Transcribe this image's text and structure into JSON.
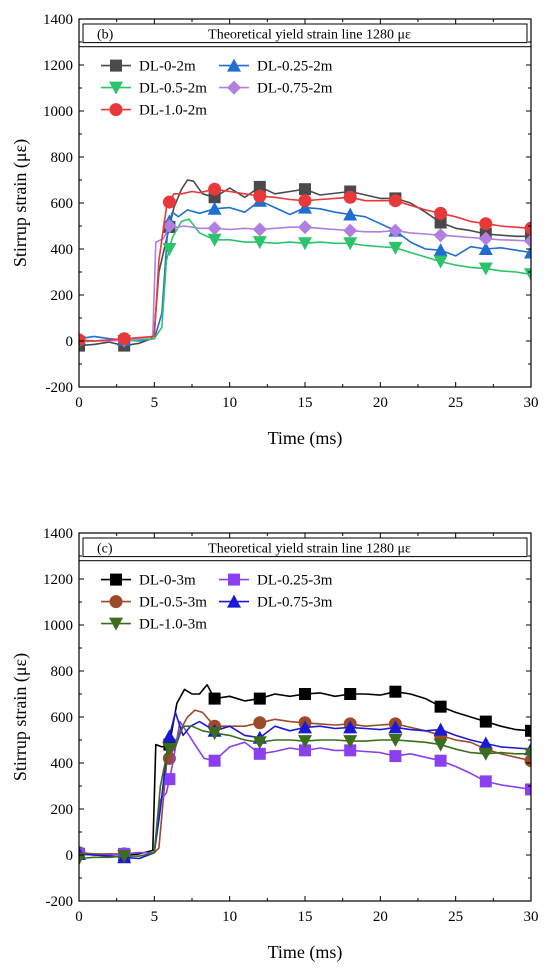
{
  "chart_data": [
    {
      "type": "line",
      "panel_label": "(b)",
      "annotation": "Theoretical yield strain line 1280 με",
      "yield_line": 1280,
      "xlabel": "Time (ms)",
      "ylabel": "Stirrup strain (με)",
      "xlim": [
        0,
        30
      ],
      "ylim": [
        -200,
        1400
      ],
      "xticks": [
        "0",
        "5",
        "10",
        "15",
        "20",
        "25",
        "30"
      ],
      "yticks": [
        "-200",
        "0",
        "200",
        "400",
        "600",
        "800",
        "1000",
        "1200",
        "1400"
      ],
      "legend_position": "top-left",
      "series": [
        {
          "name": "DL-0-2m",
          "color": "#4a4a4a",
          "marker": "square",
          "x": [
            0,
            1,
            2,
            3,
            4,
            4.8,
            5,
            5.3,
            5.8,
            6.3,
            6.8,
            7.2,
            7.6,
            8.2,
            9,
            10,
            11,
            12,
            13,
            14,
            15,
            16,
            18,
            20,
            21,
            22,
            23,
            24,
            25,
            26,
            27,
            28,
            29,
            30
          ],
          "y": [
            -20,
            -15,
            -5,
            -20,
            -10,
            10,
            40,
            300,
            440,
            580,
            660,
            700,
            695,
            640,
            625,
            665,
            625,
            670,
            640,
            650,
            660,
            635,
            650,
            620,
            620,
            600,
            560,
            515,
            490,
            480,
            465,
            460,
            455,
            455
          ]
        },
        {
          "name": "DL-0.25-2m",
          "color": "#1f6fd1",
          "marker": "triangle-up",
          "x": [
            0,
            1,
            2,
            3,
            4,
            5,
            5.5,
            5.9,
            6.2,
            6.6,
            7.2,
            8,
            9,
            10,
            11,
            12,
            13,
            14,
            15,
            16,
            17,
            18,
            19,
            20,
            21,
            22,
            23,
            24,
            25,
            26,
            27,
            28,
            29,
            30
          ],
          "y": [
            10,
            20,
            10,
            5,
            0,
            10,
            120,
            500,
            560,
            540,
            570,
            555,
            575,
            580,
            560,
            610,
            580,
            550,
            580,
            575,
            560,
            550,
            540,
            510,
            480,
            430,
            400,
            395,
            370,
            410,
            400,
            405,
            395,
            385
          ]
        },
        {
          "name": "DL-0.5-2m",
          "color": "#2cc46a",
          "marker": "triangle-down",
          "x": [
            0,
            1,
            2,
            3,
            4,
            5,
            5.5,
            5.8,
            6.2,
            6.8,
            7.3,
            8,
            9,
            10,
            11,
            12,
            13,
            14,
            15,
            16,
            17,
            18,
            19,
            20,
            21,
            22,
            23,
            24,
            25,
            26,
            27,
            28,
            29,
            30
          ],
          "y": [
            -5,
            0,
            5,
            0,
            5,
            10,
            60,
            350,
            450,
            520,
            530,
            470,
            440,
            440,
            430,
            430,
            425,
            430,
            425,
            430,
            425,
            425,
            415,
            410,
            405,
            385,
            365,
            345,
            330,
            320,
            315,
            305,
            300,
            290
          ]
        },
        {
          "name": "DL-0.75-2m",
          "color": "#b07fe0",
          "marker": "diamond",
          "x": [
            0,
            1,
            2,
            3,
            4,
            4.9,
            5.1,
            5.6,
            6,
            6.5,
            7,
            8,
            9,
            10,
            11,
            12,
            13,
            14,
            15,
            16,
            17,
            18,
            19,
            20,
            21,
            22,
            23,
            24,
            25,
            26,
            27,
            28,
            29,
            30
          ],
          "y": [
            5,
            0,
            0,
            5,
            10,
            20,
            430,
            445,
            500,
            495,
            500,
            490,
            490,
            485,
            490,
            485,
            490,
            495,
            495,
            490,
            485,
            480,
            475,
            475,
            480,
            470,
            465,
            460,
            455,
            450,
            445,
            440,
            438,
            435
          ]
        },
        {
          "name": "DL-1.0-2m",
          "color": "#e8383a",
          "marker": "circle",
          "x": [
            0,
            1,
            2,
            3,
            4,
            5,
            5.3,
            5.8,
            6.3,
            6.8,
            7.5,
            8,
            9,
            10,
            11,
            12,
            13,
            14,
            15,
            16,
            17,
            18,
            19,
            20,
            21,
            22,
            23,
            24,
            25,
            26,
            27,
            28,
            29,
            30
          ],
          "y": [
            5,
            0,
            5,
            10,
            15,
            20,
            350,
            580,
            640,
            640,
            650,
            645,
            660,
            650,
            640,
            630,
            625,
            615,
            610,
            615,
            620,
            625,
            610,
            610,
            610,
            590,
            570,
            555,
            540,
            520,
            510,
            500,
            495,
            490
          ]
        }
      ]
    },
    {
      "type": "line",
      "panel_label": "(c)",
      "annotation": "Theoretical yield strain line 1280 με",
      "yield_line": 1280,
      "xlabel": "Time (ms)",
      "ylabel": "Stirrup strain (με)",
      "xlim": [
        0,
        30
      ],
      "ylim": [
        -200,
        1400
      ],
      "xticks": [
        "0",
        "5",
        "10",
        "15",
        "20",
        "25",
        "30"
      ],
      "yticks": [
        "-200",
        "0",
        "200",
        "400",
        "600",
        "800",
        "1000",
        "1200",
        "1400"
      ],
      "legend_position": "top-left",
      "series": [
        {
          "name": "DL-0-3m",
          "color": "#000000",
          "marker": "square",
          "x": [
            0,
            1,
            2,
            3,
            4,
            4.9,
            5.1,
            5.5,
            6,
            6.5,
            7,
            7.5,
            8,
            8.5,
            9,
            10,
            11,
            12,
            13,
            14,
            15,
            16,
            17,
            18,
            19,
            20,
            21,
            22,
            23,
            24,
            25,
            26,
            27,
            28,
            29,
            30
          ],
          "y": [
            5,
            0,
            5,
            0,
            5,
            20,
            480,
            470,
            480,
            660,
            720,
            700,
            700,
            740,
            680,
            690,
            670,
            680,
            700,
            690,
            700,
            705,
            690,
            700,
            700,
            695,
            710,
            700,
            680,
            645,
            620,
            600,
            580,
            560,
            545,
            540
          ]
        },
        {
          "name": "DL-0.5-3m",
          "color": "#9c4a2a",
          "marker": "circle",
          "x": [
            0,
            1,
            2,
            3,
            4,
            5,
            5.3,
            5.8,
            6.2,
            6.7,
            7.2,
            7.7,
            8.2,
            9,
            10,
            11,
            12,
            13,
            14,
            15,
            16,
            17,
            18,
            19,
            20,
            21,
            22,
            23,
            24,
            25,
            26,
            27,
            28,
            29,
            30
          ],
          "y": [
            10,
            5,
            5,
            5,
            10,
            10,
            30,
            390,
            450,
            540,
            600,
            630,
            620,
            560,
            560,
            560,
            575,
            590,
            580,
            575,
            570,
            565,
            570,
            560,
            565,
            570,
            555,
            540,
            520,
            500,
            490,
            460,
            440,
            425,
            410
          ]
        },
        {
          "name": "DL-0.25-3m",
          "color": "#8a3ff0",
          "marker": "square",
          "x": [
            0,
            1,
            2,
            3,
            4,
            5,
            5.4,
            5.8,
            6.2,
            6.7,
            7.2,
            7.8,
            8.3,
            9,
            10,
            11,
            12,
            13,
            14,
            15,
            16,
            17,
            18,
            19,
            20,
            21,
            22,
            23,
            24,
            25,
            26,
            27,
            28,
            29,
            30
          ],
          "y": [
            5,
            0,
            0,
            5,
            10,
            10,
            240,
            270,
            390,
            580,
            530,
            470,
            420,
            410,
            470,
            490,
            440,
            450,
            465,
            455,
            465,
            455,
            455,
            450,
            445,
            430,
            440,
            425,
            410,
            385,
            355,
            320,
            305,
            295,
            285
          ]
        },
        {
          "name": "DL-0.75-3m",
          "color": "#1a1ad6",
          "marker": "triangle-up",
          "x": [
            0,
            1,
            2,
            3,
            4,
            5,
            5.4,
            5.9,
            6.4,
            6.9,
            7.4,
            8,
            9,
            10,
            11,
            12,
            13,
            14,
            15,
            16,
            17,
            18,
            19,
            20,
            21,
            22,
            23,
            24,
            25,
            26,
            27,
            28,
            29,
            30
          ],
          "y": [
            5,
            0,
            -5,
            -10,
            -15,
            10,
            200,
            490,
            620,
            520,
            560,
            580,
            540,
            560,
            520,
            510,
            560,
            540,
            555,
            560,
            550,
            555,
            550,
            545,
            555,
            545,
            540,
            545,
            520,
            500,
            485,
            470,
            465,
            460
          ]
        },
        {
          "name": "DL-1.0-3m",
          "color": "#3a6e1e",
          "marker": "triangle-down",
          "x": [
            0,
            1,
            2,
            3,
            4,
            5,
            5.4,
            5.9,
            6.4,
            6.9,
            7.5,
            8.2,
            9,
            10,
            11,
            12,
            13,
            14,
            15,
            16,
            17,
            18,
            19,
            20,
            21,
            22,
            23,
            24,
            25,
            26,
            27,
            28,
            29,
            30
          ],
          "y": [
            -15,
            -10,
            -10,
            -5,
            -5,
            10,
            300,
            460,
            470,
            560,
            560,
            540,
            530,
            520,
            500,
            490,
            500,
            500,
            495,
            500,
            500,
            495,
            495,
            500,
            500,
            495,
            490,
            480,
            460,
            445,
            440,
            445,
            440,
            440
          ]
        }
      ]
    }
  ]
}
